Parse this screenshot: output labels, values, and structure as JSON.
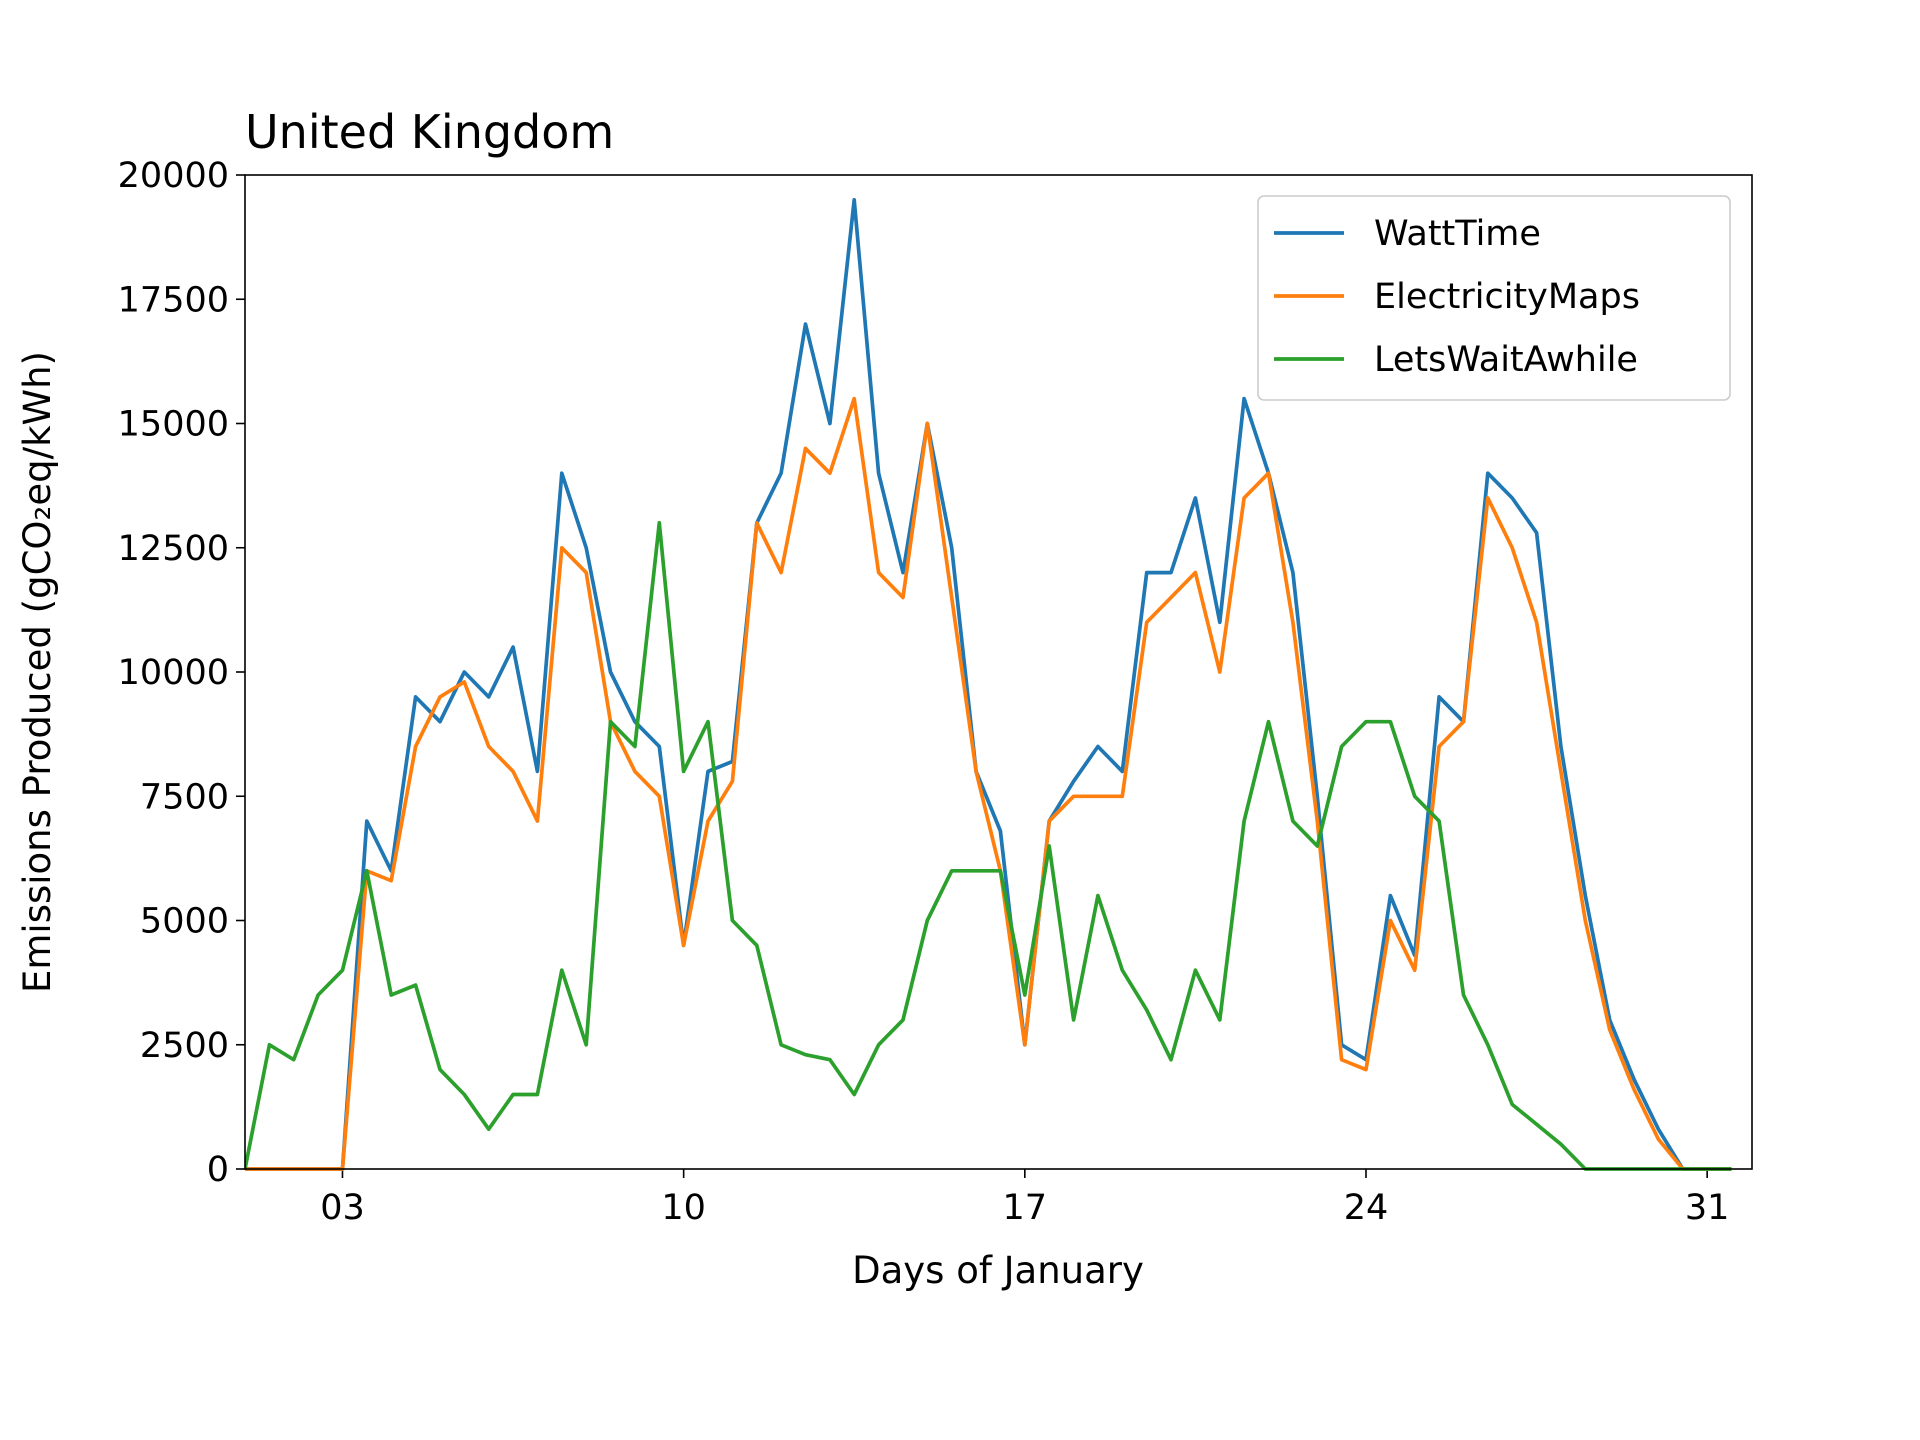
{
  "chart_data": {
    "type": "line",
    "title": "United Kingdom",
    "xlabel": "Days of January",
    "ylabel": "Emissions Produced (gCO₂eq/kWh)",
    "x": [
      1.0,
      1.5,
      2.0,
      2.5,
      3.0,
      3.5,
      4.0,
      4.5,
      5.0,
      5.5,
      6.0,
      6.5,
      7.0,
      7.5,
      8.0,
      8.5,
      9.0,
      9.5,
      10.0,
      10.5,
      11.0,
      11.5,
      12.0,
      12.5,
      13.0,
      13.5,
      14.0,
      14.5,
      15.0,
      15.5,
      16.0,
      16.5,
      17.0,
      17.5,
      18.0,
      18.5,
      19.0,
      19.5,
      20.0,
      20.5,
      21.0,
      21.5,
      22.0,
      22.5,
      23.0,
      23.5,
      24.0,
      24.5,
      25.0,
      25.5,
      26.0,
      26.5,
      27.0,
      27.5,
      28.0,
      28.5,
      29.0,
      29.5,
      30.0,
      30.5,
      31.0,
      31.5
    ],
    "series": [
      {
        "name": "WattTime",
        "color": "#1f77b4",
        "values": [
          0,
          0,
          0,
          0,
          0,
          7000,
          6000,
          9500,
          9000,
          10000,
          9500,
          10500,
          8000,
          14000,
          12500,
          10000,
          9000,
          8500,
          4500,
          8000,
          8200,
          13000,
          14000,
          17000,
          15000,
          19500,
          14000,
          12000,
          15000,
          12500,
          8000,
          6800,
          2500,
          7000,
          7800,
          8500,
          8000,
          12000,
          12000,
          13500,
          11000,
          15500,
          14000,
          12000,
          7500,
          2500,
          2200,
          5500,
          4300,
          9500,
          9000,
          14000,
          13500,
          12800,
          8500,
          5500,
          3000,
          1800,
          800,
          0,
          0,
          0
        ]
      },
      {
        "name": "ElectricityMaps",
        "color": "#ff7f0e",
        "values": [
          0,
          0,
          0,
          0,
          0,
          6000,
          5800,
          8500,
          9500,
          9800,
          8500,
          8000,
          7000,
          12500,
          12000,
          9000,
          8000,
          7500,
          4500,
          7000,
          7800,
          13000,
          12000,
          14500,
          14000,
          15500,
          12000,
          11500,
          15000,
          11500,
          8000,
          6000,
          2500,
          7000,
          7500,
          7500,
          7500,
          11000,
          11500,
          12000,
          10000,
          13500,
          14000,
          11000,
          7000,
          2200,
          2000,
          5000,
          4000,
          8500,
          9000,
          13500,
          12500,
          11000,
          8000,
          5000,
          2800,
          1600,
          600,
          0,
          0,
          0
        ]
      },
      {
        "name": "LetsWaitAwhile",
        "color": "#2ca02c",
        "values": [
          0,
          2500,
          2200,
          3500,
          4000,
          6000,
          3500,
          3700,
          2000,
          1500,
          800,
          1500,
          1500,
          4000,
          2500,
          9000,
          8500,
          13000,
          8000,
          9000,
          5000,
          4500,
          2500,
          2300,
          2200,
          1500,
          2500,
          3000,
          5000,
          6000,
          6000,
          6000,
          3500,
          6500,
          3000,
          5500,
          4000,
          3200,
          2200,
          4000,
          3000,
          7000,
          9000,
          7000,
          6500,
          8500,
          9000,
          9000,
          7500,
          7000,
          3500,
          2500,
          1300,
          900,
          500,
          0,
          0,
          0,
          0,
          0,
          0,
          0
        ]
      }
    ],
    "xlim": [
      1.0,
      31.92
    ],
    "xticks": [
      {
        "value": 3,
        "label": "03"
      },
      10,
      17,
      24,
      31
    ],
    "ylim": [
      0,
      20000
    ],
    "yticks": [
      0,
      2500,
      5000,
      7500,
      10000,
      12500,
      15000,
      17500,
      20000
    ],
    "grid": false,
    "legend": "upper right"
  }
}
